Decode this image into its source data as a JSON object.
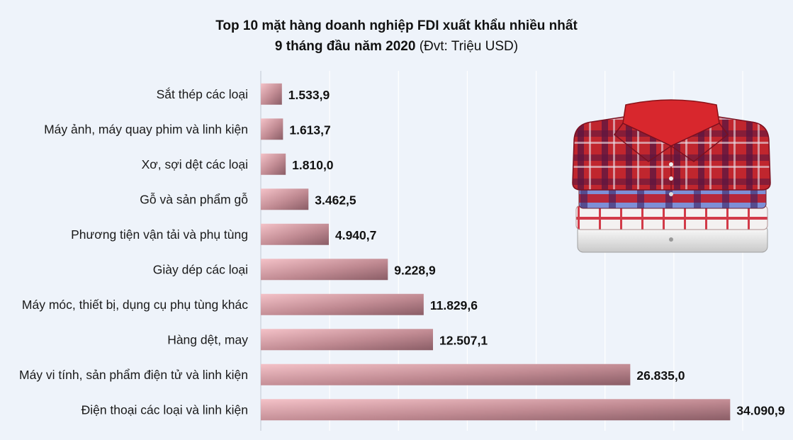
{
  "chart_data": {
    "type": "bar",
    "orientation": "horizontal",
    "title": "Top 10 mặt hàng doanh nghiệp FDI xuất khẩu nhiều nhất",
    "subtitle": "9 tháng đầu năm 2020",
    "unit_note": "(Đvt: Triệu USD)",
    "categories": [
      "Sắt thép các loại",
      "Máy ảnh, máy quay phim và linh kiện",
      "Xơ, sợi dệt các loại",
      "Gỗ và sản phẩm gỗ",
      "Phương tiện vận tải và phụ tùng",
      "Giày dép các loại",
      "Máy móc, thiết bị, dụng cụ phụ tùng khác",
      "Hàng dệt, may",
      "Máy vi tính, sản phẩm điện tử và linh kiện",
      "Điện thoại các loại và linh kiện"
    ],
    "values": [
      1533.9,
      1613.7,
      1810.0,
      3462.5,
      4940.7,
      9228.9,
      11829.6,
      12507.1,
      26835.0,
      34090.9
    ],
    "value_labels": [
      "1.533,9",
      "1.613,7",
      "1.810,0",
      "3.462,5",
      "4.940,7",
      "9.228,9",
      "11.829,6",
      "12.507,1",
      "26.835,0",
      "34.090,9"
    ],
    "xlim": [
      0,
      35000
    ],
    "grid": true,
    "bar_color_light": "#f2b8c0",
    "bar_color_dark": "#8a5d66"
  },
  "decoration": {
    "icon": "folded-shirts-icon"
  }
}
